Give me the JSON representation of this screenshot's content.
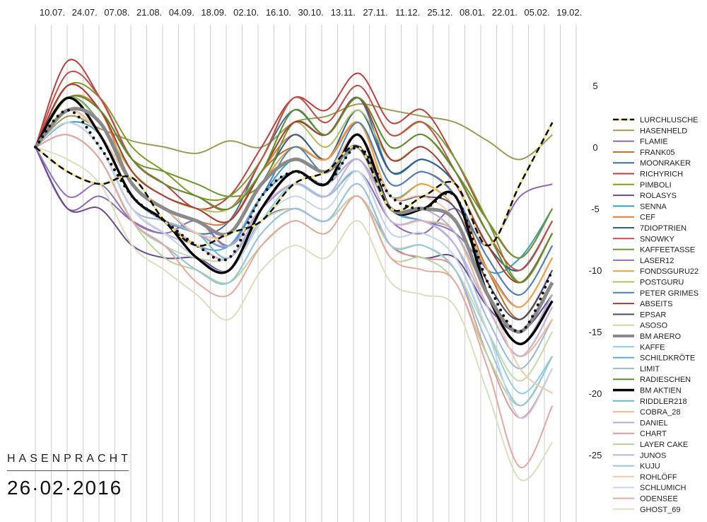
{
  "chart_data": {
    "type": "line",
    "title": "",
    "x_ticks": [
      "10.07.",
      "24.07.",
      "07.08.",
      "21.08.",
      "04.09.",
      "18.09.",
      "02.10.",
      "16.10.",
      "30.10.",
      "13.11.",
      "27.11.",
      "11.12.",
      "25.12.",
      "08.01.",
      "22.01.",
      "05.02.",
      "19.02."
    ],
    "ylim": [
      -27.5,
      9.5
    ],
    "y_ticks": [
      5,
      0,
      -5,
      -10,
      -15,
      -20,
      -25
    ],
    "grid": "vertical",
    "legend": "right",
    "key_x": [
      0,
      1,
      2,
      3,
      4,
      5,
      6,
      7,
      8,
      9,
      10,
      11,
      12,
      13,
      14,
      15,
      16
    ],
    "series": [
      {
        "name": "LURCHLUSCHE",
        "color": "#5c5420",
        "dash": "dashed-yellow",
        "width": 2.5,
        "values": [
          0,
          -2,
          -3,
          -2.5,
          -6,
          -8,
          -7,
          -6,
          -3,
          -2,
          0,
          -5,
          -4,
          -3,
          -8,
          -3,
          2
        ]
      },
      {
        "name": "HASENHELD",
        "color": "#9c9a58",
        "dash": "solid",
        "width": 2,
        "values": [
          0,
          2.5,
          1.5,
          0.5,
          0,
          -0.5,
          0.5,
          0,
          2,
          2.5,
          3.5,
          3,
          2.5,
          2,
          0.5,
          -1,
          1
        ]
      },
      {
        "name": "FLAMIE",
        "color": "#8c6aad",
        "dash": "solid",
        "width": 2,
        "values": [
          0,
          -5,
          -4,
          -6,
          -7,
          -6,
          -8,
          -5,
          -3,
          -4,
          -2,
          -6,
          -7,
          -5,
          -8,
          -4,
          -3
        ]
      },
      {
        "name": "FRANK05",
        "color": "#b8702b",
        "dash": "solid",
        "width": 2,
        "values": [
          0,
          5,
          3,
          -2,
          -4,
          -5,
          -6,
          -2,
          0,
          -1,
          2,
          -3,
          -2,
          -4,
          -10,
          -14,
          -10
        ]
      },
      {
        "name": "MOONRAKER",
        "color": "#3a6fa8",
        "dash": "solid",
        "width": 2,
        "values": [
          0,
          4,
          2,
          -3,
          -5,
          -7,
          -6,
          -1,
          3,
          1,
          4,
          -2,
          -1,
          -3,
          -8,
          -10,
          -6
        ]
      },
      {
        "name": "RICHYRICH",
        "color": "#b84240",
        "dash": "solid",
        "width": 2,
        "values": [
          0,
          7,
          4,
          -1,
          -3,
          -5,
          -4,
          0,
          4,
          3,
          6,
          2,
          3,
          -1,
          -6,
          -9,
          -5
        ]
      },
      {
        "name": "PIMBOLI",
        "color": "#7c9a2e",
        "dash": "solid",
        "width": 2,
        "values": [
          0,
          5,
          4,
          0,
          -2,
          -4,
          -4,
          -1,
          4,
          2,
          5,
          1,
          2,
          -1,
          -6,
          -11,
          -7
        ]
      },
      {
        "name": "ROLASYS",
        "color": "#6a4a90",
        "dash": "solid",
        "width": 2,
        "values": [
          0,
          -5,
          -5,
          -8,
          -9,
          -9,
          -10,
          -6,
          -5,
          -6,
          -4,
          -8,
          -9,
          -9,
          -13,
          -15,
          -12
        ]
      },
      {
        "name": "SENNA",
        "color": "#3a9db8",
        "dash": "solid",
        "width": 2,
        "values": [
          0,
          2,
          1,
          -4,
          -6,
          -7,
          -8,
          -4,
          -1,
          -2,
          1,
          -4,
          -3,
          -5,
          -10,
          -9,
          -5
        ]
      },
      {
        "name": "CEF",
        "color": "#e07a3a",
        "dash": "solid",
        "width": 2,
        "values": [
          0,
          4,
          3,
          -3,
          -5,
          -6,
          -6,
          -2,
          1,
          -1,
          2,
          -3,
          -2,
          -4,
          -9,
          -12,
          -8
        ]
      },
      {
        "name": "7DIOPTRIEN",
        "color": "#2f5f8e",
        "dash": "solid",
        "width": 2,
        "values": [
          0,
          3,
          2,
          -3,
          -5,
          -6,
          -7,
          -3,
          1,
          -1,
          3,
          -2,
          -1,
          -3,
          -8,
          -10,
          -6
        ]
      },
      {
        "name": "SNOWKY",
        "color": "#c4504a",
        "dash": "solid",
        "width": 2,
        "values": [
          0,
          6,
          4,
          -1,
          -3,
          -4,
          -5,
          -1,
          4,
          2,
          5,
          1,
          2,
          -2,
          -7,
          -10,
          -6
        ]
      },
      {
        "name": "KAFFEETASSE",
        "color": "#6e9630",
        "dash": "solid",
        "width": 2,
        "values": [
          0,
          4,
          3,
          -1,
          -2,
          -3,
          -4,
          -3,
          2,
          1,
          4,
          0,
          1,
          -2,
          -6,
          -9,
          -5
        ]
      },
      {
        "name": "LASER12",
        "color": "#8f72b8",
        "dash": "solid",
        "width": 2,
        "values": [
          0,
          -4,
          -3,
          -6,
          -7,
          -6,
          -8,
          -4,
          -2,
          -3,
          -1,
          -5,
          -6,
          -7,
          -10,
          -13,
          -9
        ]
      },
      {
        "name": "FONDSGURU22",
        "color": "#f0a040",
        "dash": "solid",
        "width": 2,
        "values": [
          0,
          3,
          2,
          -3,
          -5,
          -6,
          -7,
          -3,
          0,
          -1,
          2,
          -4,
          -3,
          -5,
          -10,
          -13,
          -9
        ]
      },
      {
        "name": "POSTGURU",
        "color": "#a8c060",
        "dash": "solid",
        "width": 2,
        "values": [
          0,
          4,
          2,
          -2,
          -4,
          -5,
          -5,
          -2,
          2,
          0,
          3,
          -1,
          0,
          -3,
          -8,
          -11,
          -7
        ]
      },
      {
        "name": "PETER GRIMES",
        "color": "#4a80c0",
        "dash": "solid",
        "width": 2,
        "values": [
          0,
          3,
          1,
          -4,
          -6,
          -7,
          -8,
          -4,
          0,
          -2,
          2,
          -3,
          -2,
          -4,
          -9,
          -12,
          -8
        ]
      },
      {
        "name": "ABSEITS",
        "color": "#a83a36",
        "dash": "solid",
        "width": 2,
        "values": [
          0,
          5,
          3,
          -2,
          -4,
          -5,
          -6,
          -2,
          2,
          1,
          4,
          -1,
          0,
          -3,
          -8,
          -11,
          -7
        ]
      },
      {
        "name": "EPSAR",
        "color": "#4a4a72",
        "dash": "solid",
        "width": 2,
        "values": [
          0,
          3,
          1,
          -3,
          -5,
          -7,
          -7,
          -3,
          -1,
          -2,
          1,
          -4,
          -4,
          -5,
          -11,
          -14,
          -10
        ]
      },
      {
        "name": "ASOSO",
        "color": "#c8d8a8",
        "dash": "solid",
        "width": 2,
        "values": [
          0,
          1,
          -1,
          -6,
          -8,
          -9,
          -9,
          -6,
          -5,
          -6,
          -4,
          -8,
          -8,
          -10,
          -15,
          -19,
          -15
        ]
      },
      {
        "name": "BM ARERO",
        "color": "#8a8a8a",
        "dash": "solid",
        "width": 5,
        "values": [
          0,
          3,
          2,
          -3,
          -5,
          -6,
          -7,
          -3,
          -1,
          -2,
          0,
          -5,
          -5,
          -6,
          -12,
          -15,
          -11
        ]
      },
      {
        "name": "KAFFE",
        "color": "#8ccfe0",
        "dash": "solid",
        "width": 2,
        "values": [
          0,
          2,
          0,
          -5,
          -7,
          -9,
          -10,
          -6,
          -3,
          -4,
          -2,
          -7,
          -7,
          -9,
          -15,
          -20,
          -17
        ]
      },
      {
        "name": "SCHILDKRÖTE",
        "color": "#5aaad0",
        "dash": "solid",
        "width": 2,
        "values": [
          0,
          3,
          1,
          -4,
          -6,
          -8,
          -8,
          -4,
          -2,
          -3,
          0,
          -5,
          -6,
          -7,
          -13,
          -17,
          -13
        ]
      },
      {
        "name": "LIMIT",
        "color": "#9ab8d8",
        "dash": "solid",
        "width": 2,
        "values": [
          0,
          2,
          0,
          -5,
          -7,
          -8,
          -9,
          -5,
          -3,
          -4,
          -1,
          -6,
          -6,
          -8,
          -14,
          -18,
          -14
        ]
      },
      {
        "name": "RADIESCHEN",
        "color": "#5e8e2a",
        "dash": "solid",
        "width": 2,
        "values": [
          0,
          4,
          3,
          -1,
          -3,
          -4,
          -5,
          -2,
          3,
          1,
          4,
          0,
          1,
          -2,
          -7,
          -11,
          -7
        ]
      },
      {
        "name": "BM AKTIEN",
        "color": "#000000",
        "dash": "solid",
        "width": 3.5,
        "values": [
          0,
          4,
          1,
          -4,
          -6,
          -9,
          -10,
          -5,
          -2,
          -3,
          1,
          -5,
          -5,
          -4,
          -12,
          -16,
          -12.5
        ]
      },
      {
        "name": "RIDDLER218",
        "color": "#6cb8c8",
        "dash": "solid",
        "width": 2,
        "values": [
          0,
          2,
          0,
          -5,
          -6,
          -7,
          -9,
          -5,
          -2,
          -3,
          0,
          -5,
          -5,
          -6,
          -12,
          -16,
          -12
        ]
      },
      {
        "name": "COBRA_28",
        "color": "#f4b890",
        "dash": "solid",
        "width": 2,
        "values": [
          0,
          3,
          1,
          -4,
          -6,
          -8,
          -9,
          -5,
          -3,
          -4,
          -1,
          -6,
          -6,
          -7,
          -13,
          -17,
          -14
        ]
      },
      {
        "name": "DANIEL",
        "color": "#b0b0d0",
        "dash": "solid",
        "width": 2,
        "values": [
          0,
          2,
          0,
          -5,
          -6,
          -7,
          -8,
          -5,
          -2,
          -3,
          -1,
          -5,
          -5,
          -7,
          -12,
          -16,
          -12
        ]
      },
      {
        "name": "CHART",
        "color": "#d89a9a",
        "dash": "solid",
        "width": 2,
        "values": [
          0,
          1,
          -1,
          -6,
          -8,
          -10,
          -11,
          -7,
          -5,
          -6,
          -3,
          -8,
          -9,
          -10,
          -17,
          -22,
          -18
        ]
      },
      {
        "name": "LAYER CAKE",
        "color": "#b8d498",
        "dash": "solid",
        "width": 2,
        "values": [
          0,
          1,
          -1,
          -6,
          -9,
          -10,
          -11,
          -8,
          -6,
          -7,
          -4,
          -9,
          -9,
          -11,
          -17,
          -21,
          -17
        ]
      },
      {
        "name": "JUNOS",
        "color": "#c4b0e0",
        "dash": "solid",
        "width": 2,
        "values": [
          0,
          2,
          0,
          -5,
          -7,
          -8,
          -9,
          -5,
          -3,
          -4,
          -1,
          -6,
          -6,
          -8,
          -13,
          -17,
          -13
        ]
      },
      {
        "name": "KUJU",
        "color": "#94c4e0",
        "dash": "solid",
        "width": 2,
        "values": [
          0,
          1,
          -1,
          -6,
          -8,
          -10,
          -11,
          -7,
          -5,
          -6,
          -3,
          -8,
          -8,
          -10,
          -16,
          -21,
          -17
        ]
      },
      {
        "name": "ROHLÖFF",
        "color": "#f8c8a8",
        "dash": "solid",
        "width": 2,
        "values": [
          0,
          3,
          1,
          -3,
          -5,
          -7,
          -7,
          -3,
          -1,
          -2,
          1,
          -4,
          -4,
          -6,
          -12,
          -18,
          -20
        ]
      },
      {
        "name": "SCHLUMICH",
        "color": "#c8d4e8",
        "dash": "solid",
        "width": 2,
        "values": [
          0,
          2,
          0,
          -5,
          -7,
          -9,
          -10,
          -6,
          -4,
          -5,
          -2,
          -7,
          -7,
          -9,
          -15,
          -22,
          -18
        ]
      },
      {
        "name": "ODENSEE",
        "color": "#e4a8a0",
        "dash": "solid",
        "width": 2,
        "values": [
          0,
          1,
          -1,
          -6,
          -8,
          -11,
          -12,
          -8,
          -6,
          -7,
          -4,
          -9,
          -10,
          -11,
          -18,
          -26,
          -21
        ]
      },
      {
        "name": "GHOST_69",
        "color": "#d8e0c0",
        "dash": "solid",
        "width": 2,
        "values": [
          0,
          -1,
          -3,
          -8,
          -10,
          -12,
          -14,
          -10,
          -8,
          -9,
          -6,
          -11,
          -12,
          -13,
          -20,
          -27,
          -24
        ]
      }
    ],
    "extra_series": [
      {
        "name": "dotted-average",
        "color": "#111111",
        "dash": "dotted",
        "width": 4,
        "values": [
          0,
          3,
          0,
          -4,
          -6,
          -8,
          -9,
          -4,
          -2,
          -3,
          0,
          -4,
          -5,
          -4,
          -11,
          -15,
          -10
        ]
      }
    ]
  },
  "brand": {
    "name": "HASENPRACHT",
    "date": "26·02·2016"
  }
}
